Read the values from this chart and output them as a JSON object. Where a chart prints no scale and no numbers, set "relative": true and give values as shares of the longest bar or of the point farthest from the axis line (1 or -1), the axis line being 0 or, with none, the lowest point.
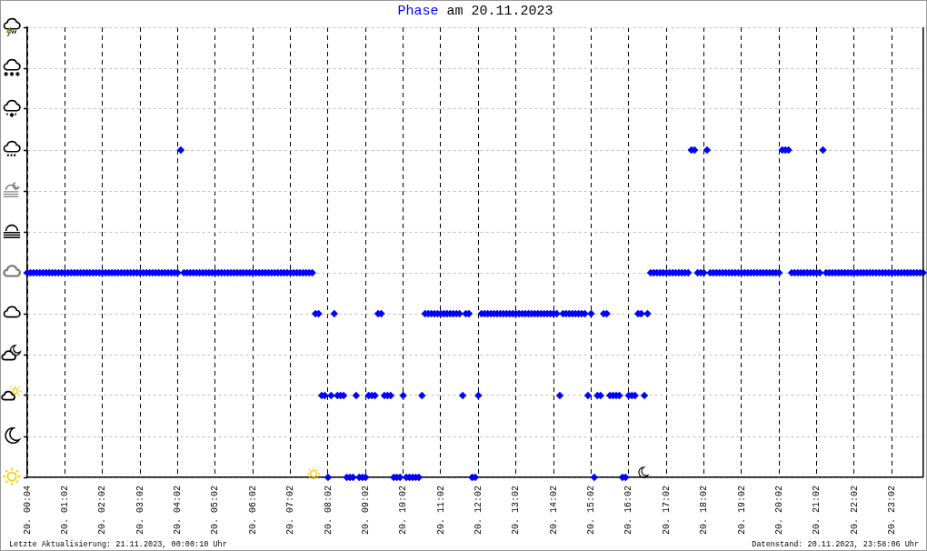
{
  "chart_data": {
    "type": "scatter",
    "title": "am 20.11.2023",
    "relative": true,
    "annotations": [
      "Letzte Aktualisierung: 21.11.2023, 00:00:10 Uhr",
      "Datenstand: 20.11.2023, 23:58:06 Uhr"
    ],
    "categories": [
      "20. 00:04",
      null,
      null,
      null,
      null,
      null,
      null,
      null,
      null,
      null,
      null,
      null,
      "20. 01:02",
      null,
      null,
      null,
      null,
      null,
      null,
      null,
      null,
      null,
      null,
      null,
      "20. 02:02",
      null,
      null,
      null,
      null,
      null,
      null,
      null,
      null,
      null,
      null,
      null,
      "20. 03:02",
      null,
      null,
      null,
      null,
      null,
      null,
      null,
      null,
      null,
      null,
      null,
      "20. 04:02",
      null,
      null,
      null,
      null,
      null,
      null,
      null,
      null,
      null,
      null,
      null,
      "20. 05:02",
      null,
      null,
      null,
      null,
      null,
      null,
      null,
      null,
      null,
      null,
      null,
      "20. 06:02",
      null,
      null,
      null,
      null,
      null,
      null,
      null,
      null,
      null,
      null,
      null,
      "20. 07:02",
      null,
      null,
      null,
      null,
      null,
      null,
      null,
      null,
      null,
      null,
      null,
      "20. 08:02",
      null,
      null,
      null,
      null,
      null,
      null,
      null,
      null,
      null,
      null,
      null,
      "20. 09:02",
      null,
      null,
      null,
      null,
      null,
      null,
      null,
      null,
      null,
      null,
      null,
      "20. 10:02",
      null,
      null,
      null,
      null,
      null,
      null,
      null,
      null,
      null,
      null,
      null,
      "20. 11:02",
      null,
      null,
      null,
      null,
      null,
      null,
      null,
      null,
      null,
      null,
      null,
      "20. 12:02",
      null,
      null,
      null,
      null,
      null,
      null,
      null,
      null,
      null,
      null,
      null,
      "20. 13:02",
      null,
      null,
      null,
      null,
      null,
      null,
      null,
      null,
      null,
      null,
      null,
      "20. 14:02",
      null,
      null,
      null,
      null,
      null,
      null,
      null,
      null,
      null,
      null,
      null,
      "20. 15:02",
      null,
      null,
      null,
      null,
      null,
      null,
      null,
      null,
      null,
      null,
      null,
      "20. 16:02",
      null,
      null,
      null,
      null,
      null,
      null,
      null,
      null,
      null,
      null,
      null,
      "20. 17:02",
      null,
      null,
      null,
      null,
      null,
      null,
      null,
      null,
      null,
      null,
      null,
      "20. 18:02",
      null,
      null,
      null,
      null,
      null,
      null,
      null,
      null,
      null,
      null,
      null,
      "20. 19:02",
      null,
      null,
      null,
      null,
      null,
      null,
      null,
      null,
      null,
      null,
      null,
      "20. 20:02",
      null,
      null,
      null,
      null,
      null,
      null,
      null,
      null,
      null,
      null,
      null,
      "20. 21:02",
      null,
      null,
      null,
      null,
      null,
      null,
      null,
      null,
      null,
      null,
      null,
      "20. 22:02",
      null,
      null,
      null,
      null,
      null,
      null,
      null,
      null,
      null,
      null,
      null,
      "20. 23:02",
      null,
      null,
      null,
      null,
      null,
      null,
      null,
      null,
      null,
      null
    ],
    "series": [
      {
        "name": "Phase",
        "color": "#0000ff",
        "values": [
          0.625,
          0.625,
          0.625,
          0.625,
          0.625,
          0.625,
          0.625,
          0.625,
          0.625,
          0.625,
          0.625,
          0.625,
          0.625,
          0.625,
          0.625,
          0.625,
          0.625,
          0.625,
          0.625,
          0.625,
          0.625,
          0.625,
          0.625,
          0.625,
          0.625,
          0.625,
          0.625,
          0.625,
          0.625,
          0.625,
          0.625,
          0.625,
          0.625,
          0.625,
          0.625,
          0.625,
          0.625,
          0.625,
          0.625,
          0.625,
          0.625,
          0.625,
          0.625,
          0.625,
          0.625,
          0.625,
          0.625,
          0.625,
          0.625,
          1,
          0.625,
          0.625,
          0.625,
          0.625,
          0.625,
          0.625,
          0.625,
          0.625,
          0.625,
          0.625,
          0.625,
          0.625,
          0.625,
          0.625,
          0.625,
          0.625,
          0.625,
          0.625,
          0.625,
          0.625,
          0.625,
          0.625,
          0.625,
          0.625,
          0.625,
          0.625,
          0.625,
          0.625,
          0.625,
          0.625,
          0.625,
          0.625,
          0.625,
          0.625,
          0.625,
          0.625,
          0.625,
          0.625,
          0.625,
          0.625,
          0.625,
          0.625,
          0.5,
          0.5,
          0.25,
          0.25,
          0,
          0.25,
          0.5,
          0.25,
          0.25,
          0.25,
          0,
          0,
          0,
          0.25,
          0,
          0,
          0,
          0.25,
          0.25,
          0.25,
          0.5,
          0.5,
          0.25,
          0.25,
          0.25,
          0,
          0,
          0,
          0.25,
          0,
          0,
          0,
          0,
          0,
          0.25,
          0.5,
          0.5,
          0.5,
          0.5,
          0.5,
          0.5,
          0.5,
          0.5,
          0.5,
          0.5,
          0.5,
          0.5,
          0.25,
          0.5,
          0.5,
          0,
          0,
          0.25,
          0.5,
          0.5,
          0.5,
          0.5,
          0.5,
          0.5,
          0.5,
          0.5,
          0.5,
          0.5,
          0.5,
          0.5,
          0.5,
          0.5,
          0.5,
          0.5,
          0.5,
          0.5,
          0.5,
          0.5,
          0.5,
          0.5,
          0.5,
          0.5,
          0.5,
          0.25,
          0.5,
          0.5,
          0.5,
          0.5,
          0.5,
          0.5,
          0.5,
          0.5,
          0.25,
          0.5,
          0,
          0.25,
          0.25,
          0.5,
          0.5,
          0.25,
          0.25,
          0.25,
          0.25,
          0,
          0,
          0.25,
          0.25,
          0.25,
          0.5,
          0.5,
          0.25,
          0.5,
          0.625,
          0.625,
          0.625,
          0.625,
          0.625,
          0.625,
          0.625,
          0.625,
          0.625,
          0.625,
          0.625,
          0.625,
          0.625,
          1,
          1,
          0.625,
          0.625,
          0.625,
          1,
          0.625,
          0.625,
          0.625,
          0.625,
          0.625,
          0.625,
          0.625,
          0.625,
          0.625,
          0.625,
          0.625,
          0.625,
          0.625,
          0.625,
          0.625,
          0.625,
          0.625,
          0.625,
          0.625,
          0.625,
          0.625,
          0.625,
          0.625,
          1,
          1,
          1,
          0.625,
          0.625,
          0.625,
          0.625,
          0.625,
          0.625,
          0.625,
          0.625,
          0.625,
          0.625,
          1,
          0.625,
          0.625,
          0.625,
          0.625,
          0.625,
          0.625,
          0.625,
          0.625,
          0.625,
          0.625,
          0.625,
          0.625,
          0.625,
          0.625,
          0.625,
          0.625,
          0.625,
          0.625,
          0.625,
          0.625,
          0.625,
          0.625,
          0.625,
          0.625,
          0.625,
          0.625,
          0.625,
          0.625,
          0.625,
          0.625,
          0.625,
          0.625
        ]
      }
    ],
    "grid": true,
    "marker": "diamond",
    "tick_labels": "x"
  }
}
